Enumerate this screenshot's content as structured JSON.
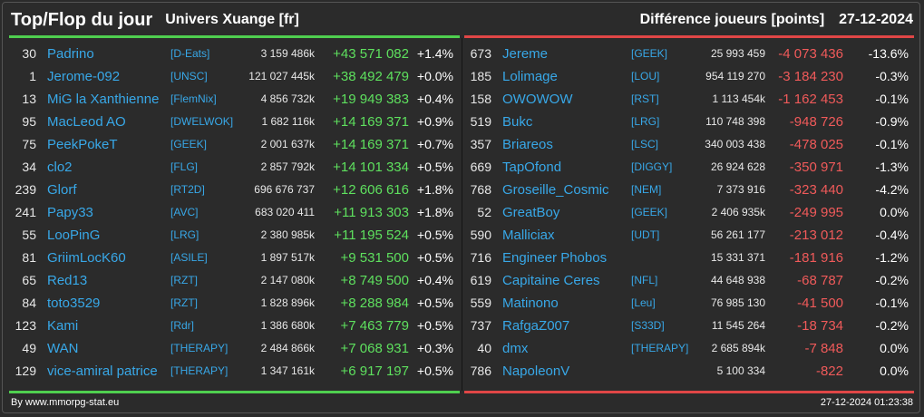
{
  "header": {
    "title": "Top/Flop du jour",
    "universe": "Univers Xuange [fr]",
    "metric": "Différence joueurs [points]",
    "date": "27-12-2024"
  },
  "colors": {
    "background": "#2b2b2b",
    "name": "#38a8e8",
    "top": "#4fcf4f",
    "flop": "#e04646"
  },
  "top": [
    {
      "rank": "30",
      "name": "Padrino",
      "alliance": "[D-Eats]",
      "score": "3 159 486k",
      "diff": "+43 571 082",
      "pct": "+1.4%"
    },
    {
      "rank": "1",
      "name": "Jerome-092",
      "alliance": "[UNSC]",
      "score": "121 027 445k",
      "diff": "+38 492 479",
      "pct": "+0.0%"
    },
    {
      "rank": "13",
      "name": "MiG la Xanthienne",
      "alliance": "[FlemNix]",
      "score": "4 856 732k",
      "diff": "+19 949 383",
      "pct": "+0.4%"
    },
    {
      "rank": "95",
      "name": "MacLeod AO",
      "alliance": "[DWELWOK]",
      "score": "1 682 116k",
      "diff": "+14 169 371",
      "pct": "+0.9%"
    },
    {
      "rank": "75",
      "name": "PeekPokeT",
      "alliance": "[GEEK]",
      "score": "2 001 637k",
      "diff": "+14 169 371",
      "pct": "+0.7%"
    },
    {
      "rank": "34",
      "name": "clo2",
      "alliance": "[FLG]",
      "score": "2 857 792k",
      "diff": "+14 101 334",
      "pct": "+0.5%"
    },
    {
      "rank": "239",
      "name": "Glorf",
      "alliance": "[RT2D]",
      "score": "696 676 737",
      "diff": "+12 606 616",
      "pct": "+1.8%"
    },
    {
      "rank": "241",
      "name": "Papy33",
      "alliance": "[AVC]",
      "score": "683 020 411",
      "diff": "+11 913 303",
      "pct": "+1.8%"
    },
    {
      "rank": "55",
      "name": "LooPinG",
      "alliance": "[LRG]",
      "score": "2 380 985k",
      "diff": "+11 195 524",
      "pct": "+0.5%"
    },
    {
      "rank": "81",
      "name": "GriimLocK60",
      "alliance": "[ASILE]",
      "score": "1 897 517k",
      "diff": "+9 531 500",
      "pct": "+0.5%"
    },
    {
      "rank": "65",
      "name": "Red13",
      "alliance": "[RZT]",
      "score": "2 147 080k",
      "diff": "+8 749 500",
      "pct": "+0.4%"
    },
    {
      "rank": "84",
      "name": "toto3529",
      "alliance": "[RZT]",
      "score": "1 828 896k",
      "diff": "+8 288 984",
      "pct": "+0.5%"
    },
    {
      "rank": "123",
      "name": "Kami",
      "alliance": "[Rdr]",
      "score": "1 386 680k",
      "diff": "+7 463 779",
      "pct": "+0.5%"
    },
    {
      "rank": "49",
      "name": "WAN",
      "alliance": "[THERAPY]",
      "score": "2 484 866k",
      "diff": "+7 068 931",
      "pct": "+0.3%"
    },
    {
      "rank": "129",
      "name": "vice-amiral patrice",
      "alliance": "[THERAPY]",
      "score": "1 347 161k",
      "diff": "+6 917 197",
      "pct": "+0.5%"
    }
  ],
  "flop": [
    {
      "rank": "673",
      "name": "Jereme",
      "alliance": "[GEEK]",
      "score": "25 993 459",
      "diff": "-4 073 436",
      "pct": "-13.6%"
    },
    {
      "rank": "185",
      "name": "Lolimage",
      "alliance": "[LOU]",
      "score": "954 119 270",
      "diff": "-3 184 230",
      "pct": "-0.3%"
    },
    {
      "rank": "158",
      "name": "OWOWOW",
      "alliance": "[RST]",
      "score": "1 113 454k",
      "diff": "-1 162 453",
      "pct": "-0.1%"
    },
    {
      "rank": "519",
      "name": "Bukc",
      "alliance": "[LRG]",
      "score": "110 748 398",
      "diff": "-948 726",
      "pct": "-0.9%"
    },
    {
      "rank": "357",
      "name": "Briareos",
      "alliance": "[LSC]",
      "score": "340 003 438",
      "diff": "-478 025",
      "pct": "-0.1%"
    },
    {
      "rank": "669",
      "name": "TapOfond",
      "alliance": "[DIGGY]",
      "score": "26 924 628",
      "diff": "-350 971",
      "pct": "-1.3%"
    },
    {
      "rank": "768",
      "name": "Groseille_Cosmic",
      "alliance": "[NEM]",
      "score": "7 373 916",
      "diff": "-323 440",
      "pct": "-4.2%"
    },
    {
      "rank": "52",
      "name": "GreatBoy",
      "alliance": "[GEEK]",
      "score": "2 406 935k",
      "diff": "-249 995",
      "pct": "0.0%"
    },
    {
      "rank": "590",
      "name": "Malliciax",
      "alliance": "[UDT]",
      "score": "56 261 177",
      "diff": "-213 012",
      "pct": "-0.4%"
    },
    {
      "rank": "716",
      "name": "Engineer Phobos",
      "alliance": "",
      "score": "15 331 371",
      "diff": "-181 916",
      "pct": "-1.2%"
    },
    {
      "rank": "619",
      "name": "Capitaine Ceres",
      "alliance": "[NFL]",
      "score": "44 648 938",
      "diff": "-68 787",
      "pct": "-0.2%"
    },
    {
      "rank": "559",
      "name": "Matinono",
      "alliance": "[Leu]",
      "score": "76 985 130",
      "diff": "-41 500",
      "pct": "-0.1%"
    },
    {
      "rank": "737",
      "name": "RafgaZ007",
      "alliance": "[S33D]",
      "score": "11 545 264",
      "diff": "-18 734",
      "pct": "-0.2%"
    },
    {
      "rank": "40",
      "name": "dmx",
      "alliance": "[THERAPY]",
      "score": "2 685 894k",
      "diff": "-7 848",
      "pct": "0.0%"
    },
    {
      "rank": "786",
      "name": "NapoleonV",
      "alliance": "",
      "score": "5 100 334",
      "diff": "-822",
      "pct": "0.0%"
    }
  ],
  "footer": {
    "source": "By www.mmorpg-stat.eu",
    "timestamp": "27-12-2024 01:23:38"
  }
}
